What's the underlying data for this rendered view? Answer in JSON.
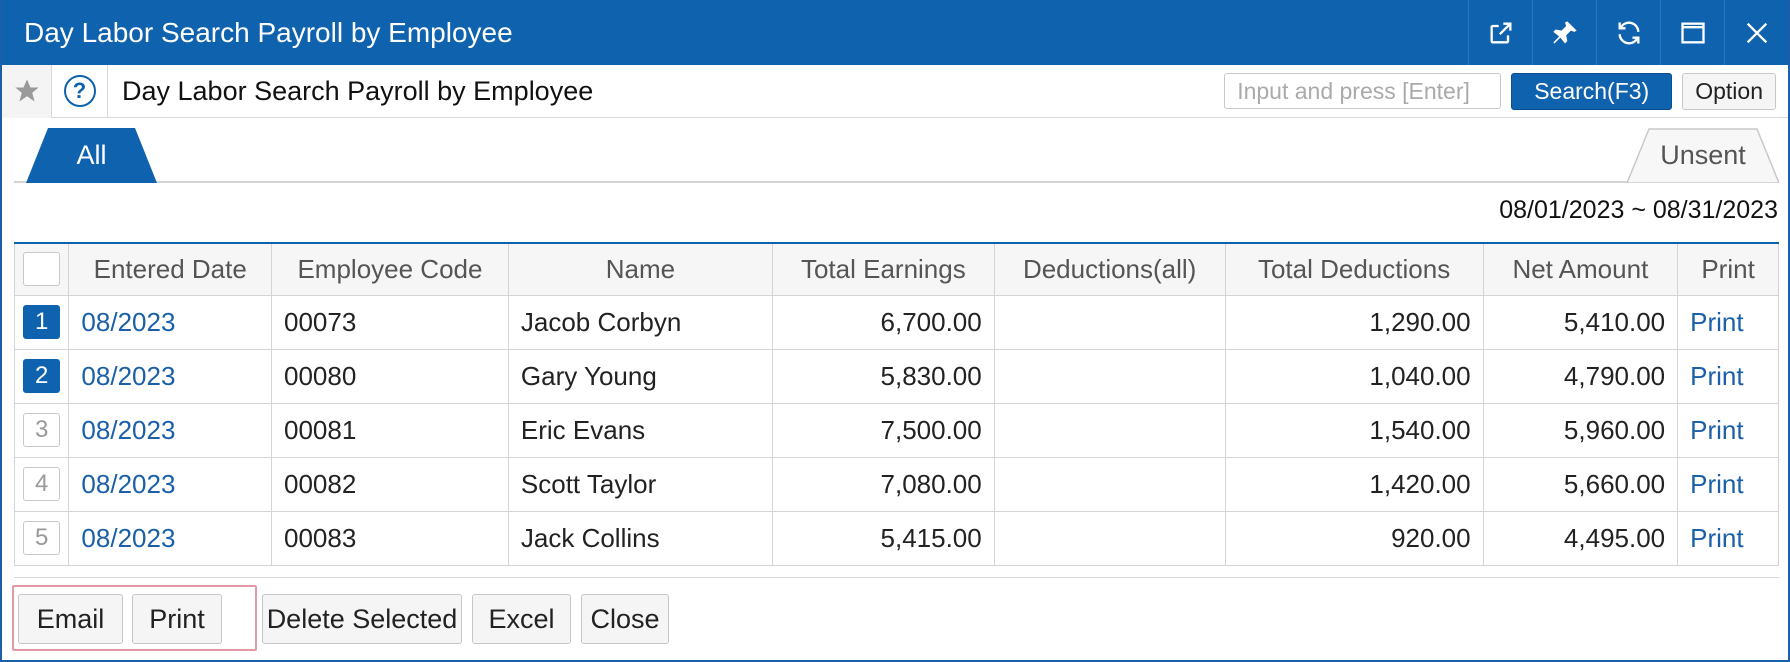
{
  "window": {
    "title": "Day Labor Search Payroll by Employee",
    "accent_color": "#0f62ad"
  },
  "toolbar": {
    "page_title": "Day Labor Search Payroll by Employee",
    "search_placeholder": "Input and press [Enter]",
    "search_button": "Search(F3)",
    "option_button": "Option"
  },
  "tabs": {
    "all": "All",
    "unsent": "Unsent"
  },
  "date_range": "08/01/2023 ~ 08/31/2023",
  "table": {
    "headers": [
      "Entered Date",
      "Employee Code",
      "Name",
      "Total Earnings",
      "Deductions(all)",
      "Total Deductions",
      "Net Amount",
      "Print"
    ],
    "rows": [
      {
        "no": "1",
        "selected": true,
        "date": "08/2023",
        "code": "00073",
        "name": "Jacob Corbyn",
        "earnings": "6,700.00",
        "deductions_all": "",
        "total_deductions": "1,290.00",
        "net": "5,410.00",
        "print": "Print"
      },
      {
        "no": "2",
        "selected": true,
        "date": "08/2023",
        "code": "00080",
        "name": "Gary Young",
        "earnings": "5,830.00",
        "deductions_all": "",
        "total_deductions": "1,040.00",
        "net": "4,790.00",
        "print": "Print"
      },
      {
        "no": "3",
        "selected": false,
        "date": "08/2023",
        "code": "00081",
        "name": "Eric Evans",
        "earnings": "7,500.00",
        "deductions_all": "",
        "total_deductions": "1,540.00",
        "net": "5,960.00",
        "print": "Print"
      },
      {
        "no": "4",
        "selected": false,
        "date": "08/2023",
        "code": "00082",
        "name": "Scott Taylor",
        "earnings": "7,080.00",
        "deductions_all": "",
        "total_deductions": "1,420.00",
        "net": "5,660.00",
        "print": "Print"
      },
      {
        "no": "5",
        "selected": false,
        "date": "08/2023",
        "code": "00083",
        "name": "Jack Collins",
        "earnings": "5,415.00",
        "deductions_all": "",
        "total_deductions": "920.00",
        "net": "4,495.00",
        "print": "Print"
      }
    ]
  },
  "footer": {
    "email": "Email",
    "print": "Print",
    "delete_selected": "Delete Selected",
    "excel": "Excel",
    "close": "Close"
  }
}
